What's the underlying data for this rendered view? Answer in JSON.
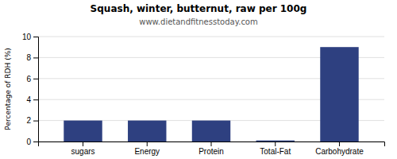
{
  "chart_data": {
    "type": "bar",
    "title": "Squash, winter, butternut, raw per 100g",
    "subtitle": "www.dietandfitnesstoday.com",
    "categories": [
      "sugars",
      "Energy",
      "Protein",
      "Total-Fat",
      "Carbohydrate"
    ],
    "values": [
      2.0,
      2.0,
      2.0,
      0.1,
      9.0
    ],
    "color": "#2e4080",
    "ylabel": "Percentage of RDH (%)",
    "ylim": [
      0,
      10
    ],
    "yticks": [
      0,
      2,
      4,
      6,
      8,
      10
    ],
    "grid": true
  }
}
